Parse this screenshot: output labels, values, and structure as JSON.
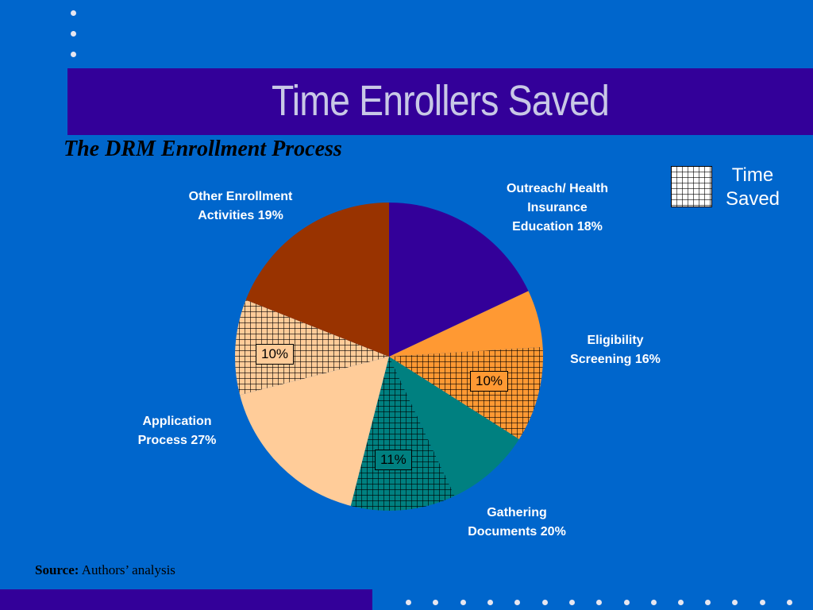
{
  "slide": {
    "title": "Time Enrollers Saved",
    "subtitle": "The DRM Enrollment Process",
    "source_label": "Source:",
    "source_text": "Authors’ analysis"
  },
  "legend": {
    "line1": "Time",
    "line2": "Saved"
  },
  "colors": {
    "background": "#0066cc",
    "title_band": "#330099",
    "title_text": "#c8c8e6"
  },
  "chart_data": {
    "type": "pie",
    "title": "The DRM Enrollment Process",
    "legend_position": "top-right",
    "slices": [
      {
        "label": "Outreach/ Health Insurance Education 18%",
        "category": "Outreach/ Health Insurance Education",
        "value": 18,
        "time_saved": 0,
        "color": "#330099"
      },
      {
        "label": "Eligibility Screening 16%",
        "category": "Eligibility Screening",
        "value": 6,
        "time_saved": 0,
        "color": "#ff9933"
      },
      {
        "label": "Eligibility Screening 16% — time saved",
        "category": "Eligibility Screening",
        "value": 10,
        "time_saved": 10,
        "color": "#ff9933",
        "pattern_label": "10%"
      },
      {
        "label": "Gathering Documents 20%",
        "category": "Gathering Documents",
        "value": 9,
        "time_saved": 0,
        "color": "#008080"
      },
      {
        "label": "Gathering Documents 20% — time saved",
        "category": "Gathering Documents",
        "value": 11,
        "time_saved": 11,
        "color": "#008080",
        "pattern_label": "11%"
      },
      {
        "label": "Application Process 27%",
        "category": "Application Process",
        "value": 17,
        "time_saved": 0,
        "color": "#ffcc99"
      },
      {
        "label": "Application Process 27% — time saved",
        "category": "Application Process",
        "value": 10,
        "time_saved": 10,
        "color": "#ffcc99",
        "pattern_label": "10%"
      },
      {
        "label": "Other Enrollment Activities 19%",
        "category": "Other Enrollment Activities",
        "value": 19,
        "time_saved": 0,
        "color": "#993300"
      }
    ],
    "category_labels": {
      "outreach": [
        "Outreach/ Health",
        "Insurance",
        "Education 18%"
      ],
      "eligibility": [
        "Eligibility",
        "Screening 16%"
      ],
      "gathering": [
        "Gathering",
        "Documents 20%"
      ],
      "application": [
        "Application",
        "Process 27%"
      ],
      "other": [
        "Other Enrollment",
        "Activities 19%"
      ]
    }
  }
}
